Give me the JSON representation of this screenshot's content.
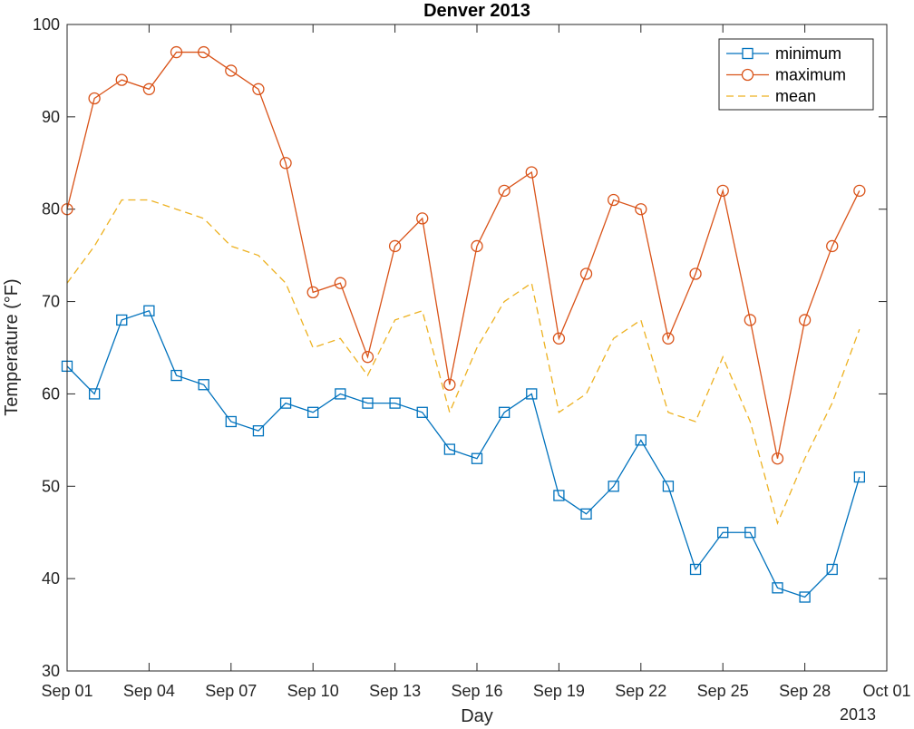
{
  "chart_data": {
    "type": "line",
    "title": "Denver 2013",
    "xlabel": "Day",
    "ylabel": "Temperature (°F)",
    "x_secondary_label": "2013",
    "x": [
      "Sep 01",
      "Sep 02",
      "Sep 03",
      "Sep 04",
      "Sep 05",
      "Sep 06",
      "Sep 07",
      "Sep 08",
      "Sep 09",
      "Sep 10",
      "Sep 11",
      "Sep 12",
      "Sep 13",
      "Sep 14",
      "Sep 15",
      "Sep 16",
      "Sep 17",
      "Sep 18",
      "Sep 19",
      "Sep 20",
      "Sep 21",
      "Sep 22",
      "Sep 23",
      "Sep 24",
      "Sep 25",
      "Sep 26",
      "Sep 27",
      "Sep 28",
      "Sep 29",
      "Sep 30"
    ],
    "xlim": [
      "Sep 01",
      "Oct 01"
    ],
    "xticks": [
      "Sep 01",
      "Sep 04",
      "Sep 07",
      "Sep 10",
      "Sep 13",
      "Sep 16",
      "Sep 19",
      "Sep 22",
      "Sep 25",
      "Sep 28",
      "Oct 01"
    ],
    "ylim": [
      30,
      100
    ],
    "yticks": [
      30,
      40,
      50,
      60,
      70,
      80,
      90,
      100
    ],
    "grid": false,
    "legend_position": "top-right",
    "series": [
      {
        "name": "minimum",
        "color": "#0072BD",
        "marker": "square",
        "line_style": "solid",
        "values": [
          63,
          60,
          68,
          69,
          62,
          61,
          57,
          56,
          59,
          58,
          60,
          59,
          59,
          58,
          54,
          53,
          58,
          60,
          49,
          47,
          50,
          55,
          50,
          41,
          45,
          45,
          39,
          38,
          41,
          51
        ]
      },
      {
        "name": "maximum",
        "color": "#D95319",
        "marker": "circle",
        "line_style": "solid",
        "values": [
          80,
          92,
          94,
          93,
          97,
          97,
          95,
          93,
          85,
          71,
          72,
          64,
          76,
          79,
          61,
          76,
          82,
          84,
          66,
          73,
          81,
          80,
          66,
          73,
          82,
          68,
          53,
          68,
          76,
          82
        ]
      },
      {
        "name": "mean",
        "color": "#EDB120",
        "marker": "none",
        "line_style": "dashed",
        "values": [
          72,
          76,
          81,
          81,
          80,
          79,
          76,
          75,
          72,
          65,
          66,
          62,
          68,
          69,
          58,
          65,
          70,
          72,
          58,
          60,
          66,
          68,
          58,
          57,
          64,
          57,
          46,
          53,
          59,
          67
        ]
      }
    ]
  }
}
